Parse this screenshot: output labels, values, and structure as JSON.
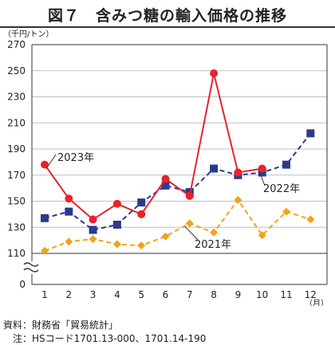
{
  "title": "図７　含みつ糖の輸入価格の推移",
  "footer": {
    "source": "資料：財務省「貿易統計」",
    "note": "　注：HSコード1701.13-000、1701.14-190"
  },
  "colors": {
    "2023年": "#e8232c",
    "2022年": "#2b3a8c",
    "2021年": "#f3a21c",
    "grid": "#bfbfbf",
    "axis": "#333333"
  },
  "chart_data": {
    "type": "line",
    "title": "図７　含みつ糖の輸入価格の推移",
    "ylabel": "（千円/トン）",
    "xlabel": "（月）",
    "x": [
      1,
      2,
      3,
      4,
      5,
      6,
      7,
      8,
      9,
      10,
      11,
      12
    ],
    "yticks": [
      0,
      110,
      130,
      150,
      170,
      190,
      210,
      230,
      250,
      270
    ],
    "ylim": [
      110,
      270
    ],
    "y_axis_break": true,
    "grid": true,
    "series": [
      {
        "name": "2023年",
        "style": "solid",
        "marker": "circle",
        "values": [
          178,
          152,
          136,
          148,
          140,
          167,
          154,
          248,
          172,
          175,
          null,
          null
        ]
      },
      {
        "name": "2022年",
        "style": "dashed",
        "marker": "square",
        "values": [
          137,
          142,
          128,
          132,
          149,
          162,
          157,
          175,
          170,
          172,
          178,
          202
        ]
      },
      {
        "name": "2021年",
        "style": "dashed",
        "marker": "diamond",
        "values": [
          112,
          119,
          121,
          117,
          116,
          123,
          133,
          126,
          151,
          124,
          142,
          136
        ]
      }
    ]
  }
}
